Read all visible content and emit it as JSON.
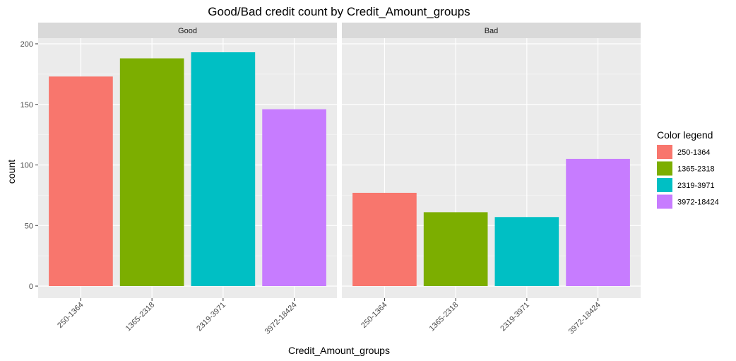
{
  "chart_data": {
    "type": "bar",
    "title": "Good/Bad credit count by Credit_Amount_groups",
    "xlabel": "Credit_Amount_groups",
    "ylabel": "count",
    "ylim": [
      0,
      210
    ],
    "yticks": [
      0,
      50,
      100,
      150,
      200
    ],
    "categories": [
      "250-1364",
      "1365-2318",
      "2319-3971",
      "3972-18424"
    ],
    "facets": [
      {
        "label": "Good",
        "values": [
          173,
          188,
          193,
          146
        ]
      },
      {
        "label": "Bad",
        "values": [
          77,
          61,
          57,
          105
        ]
      }
    ],
    "grid": true,
    "legend": {
      "title": "Color legend",
      "position": "right",
      "entries": [
        "250-1364",
        "1365-2318",
        "2319-3971",
        "3972-18424"
      ]
    },
    "colors": [
      "#F8766D",
      "#7CAE00",
      "#00BFC4",
      "#C77CFF"
    ]
  }
}
